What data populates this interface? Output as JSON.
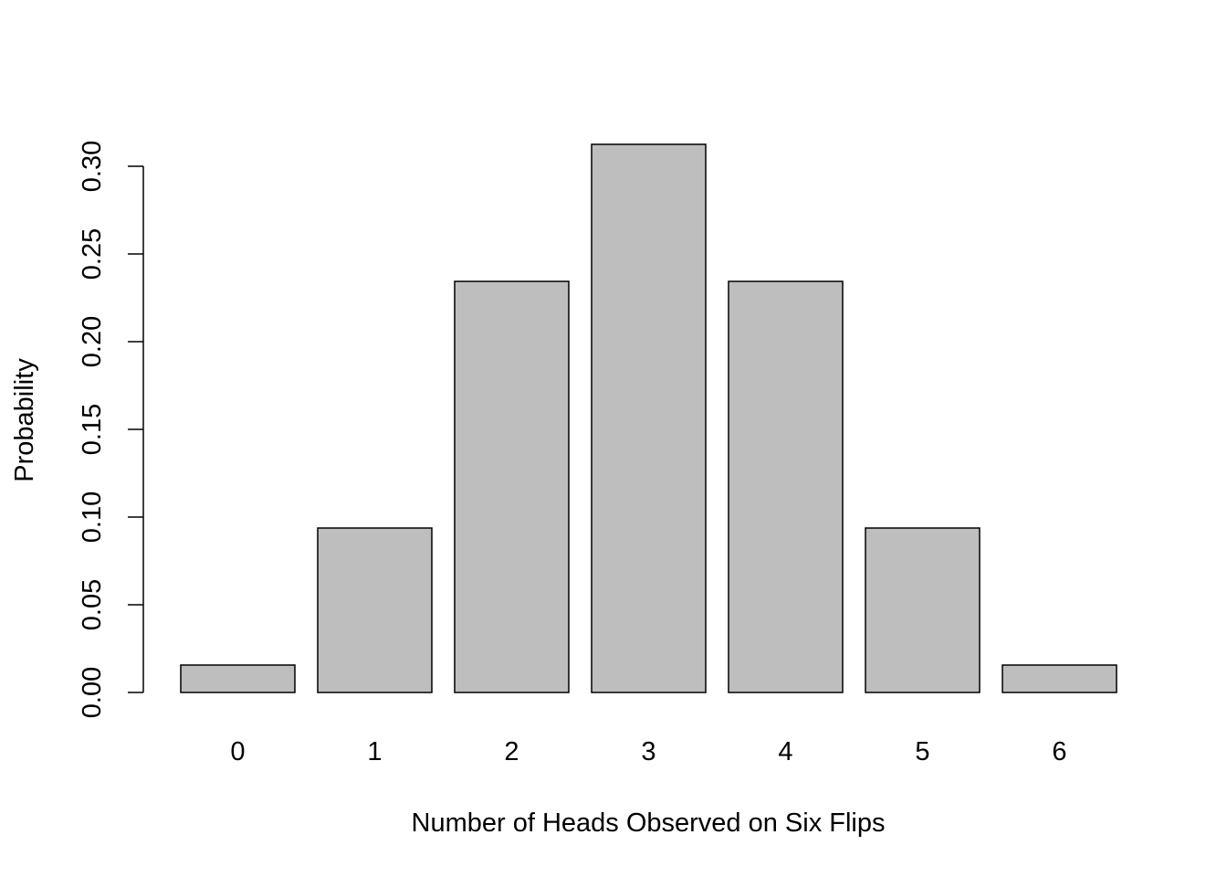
{
  "chart_data": {
    "type": "bar",
    "title": "",
    "xlabel": "Number of Heads Observed on Six Flips",
    "ylabel": "Probability",
    "categories": [
      "0",
      "1",
      "2",
      "3",
      "4",
      "5",
      "6"
    ],
    "values": [
      0.015625,
      0.09375,
      0.234375,
      0.3125,
      0.234375,
      0.09375,
      0.015625
    ],
    "ylim": [
      0,
      0.3
    ],
    "yticks": [
      "0.00",
      "0.05",
      "0.10",
      "0.15",
      "0.20",
      "0.25",
      "0.30"
    ],
    "grid": false,
    "legend": "none",
    "bar_color": "#bebebe",
    "bar_edge_color": "#000000"
  }
}
